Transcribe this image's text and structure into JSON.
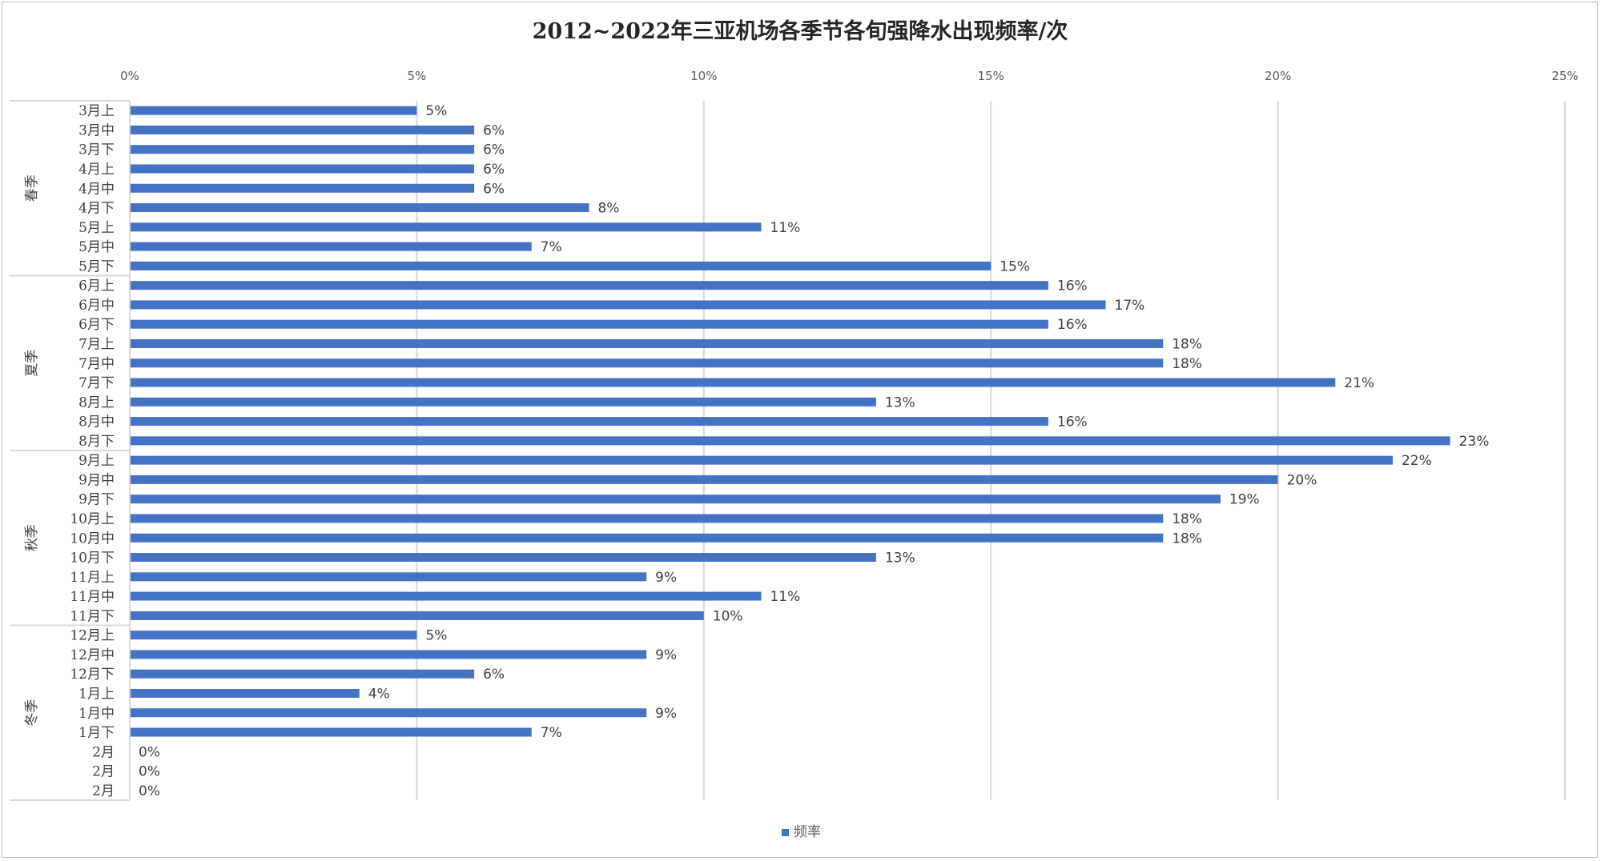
{
  "chart_data": {
    "type": "bar",
    "orientation": "horizontal",
    "title": "2012~2022年三亚机场各季节各旬强降水出现频率/次",
    "xlabel": "",
    "ylabel": "",
    "xlim": [
      0,
      25
    ],
    "x_ticks": [
      "0%",
      "5%",
      "10%",
      "15%",
      "20%",
      "25%"
    ],
    "x_axis_position": "top",
    "grid": "vertical",
    "legend_position": "bottom",
    "series": [
      {
        "name": "频率",
        "color": "#4472c4",
        "values": [
          5,
          6,
          6,
          6,
          6,
          8,
          11,
          7,
          15,
          16,
          17,
          16,
          18,
          18,
          21,
          13,
          16,
          23,
          22,
          20,
          19,
          18,
          18,
          13,
          9,
          11,
          10,
          5,
          9,
          6,
          4,
          9,
          7,
          0,
          0,
          0
        ],
        "data_labels": [
          "5%",
          "6%",
          "6%",
          "6%",
          "6%",
          "8%",
          "11%",
          "7%",
          "15%",
          "16%",
          "17%",
          "16%",
          "18%",
          "18%",
          "21%",
          "13%",
          "16%",
          "23%",
          "22%",
          "20%",
          "19%",
          "18%",
          "18%",
          "13%",
          "9%",
          "11%",
          "10%",
          "5%",
          "9%",
          "6%",
          "4%",
          "9%",
          "7%",
          "0%",
          "0%",
          "0%"
        ]
      }
    ],
    "categories": [
      "3月上",
      "3月中",
      "3月下",
      "4月上",
      "4月中",
      "4月下",
      "5月上",
      "5月中",
      "5月下",
      "6月上",
      "6月中",
      "6月下",
      "7月上",
      "7月中",
      "7月下",
      "8月上",
      "8月中",
      "8月下",
      "9月上",
      "9月中",
      "9月下",
      "10月上",
      "10月中",
      "10月下",
      "11月上",
      "11月中",
      "11月下",
      "12月上",
      "12月中",
      "12月下",
      "1月上",
      "1月中",
      "1月下",
      "2月",
      "2月",
      "2月"
    ],
    "groups": [
      {
        "label": "春季",
        "count": 9
      },
      {
        "label": "夏季",
        "count": 9
      },
      {
        "label": "秋季",
        "count": 9
      },
      {
        "label": "冬季",
        "count": 9
      }
    ]
  }
}
